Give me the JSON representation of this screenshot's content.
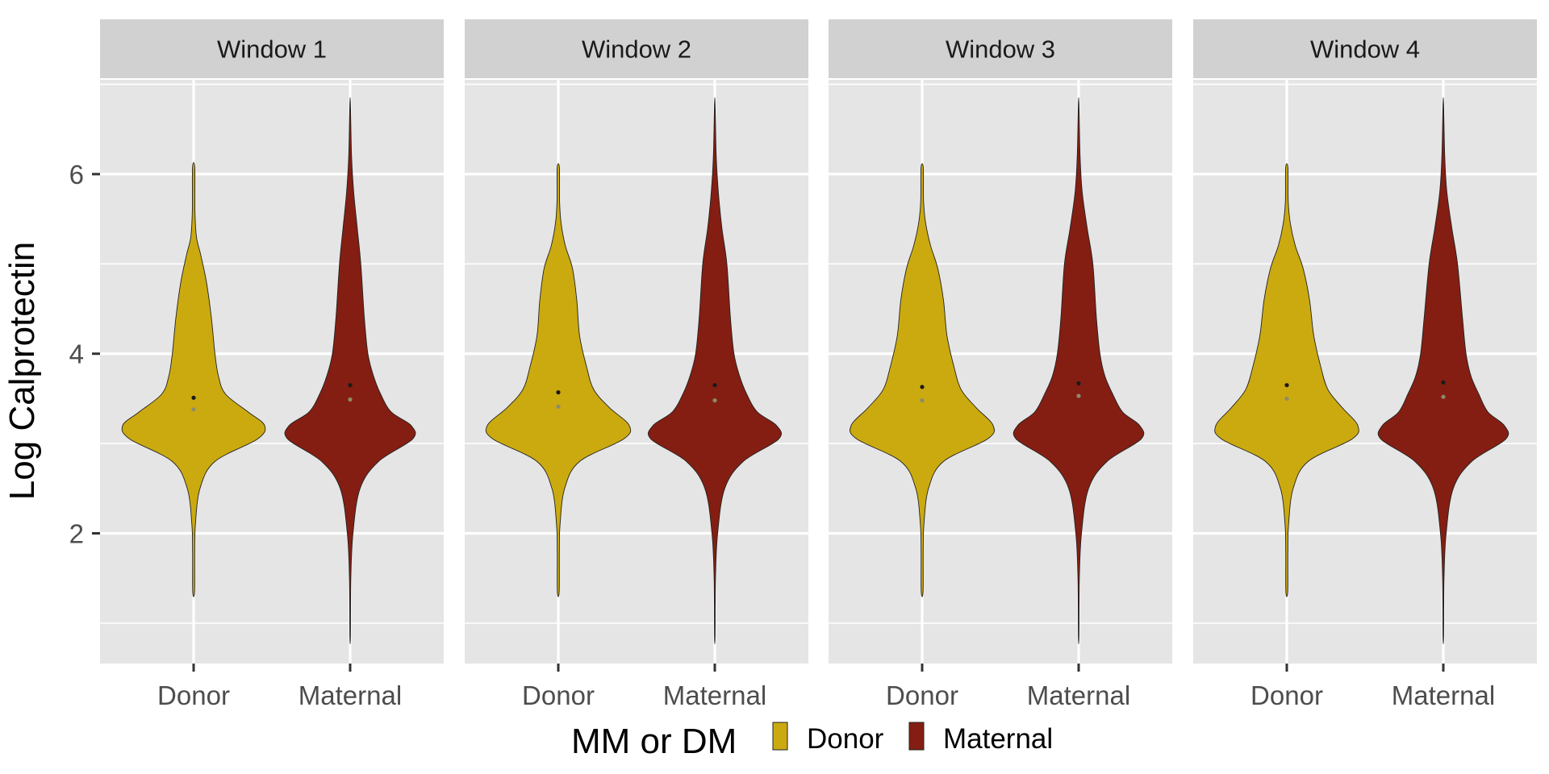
{
  "chart_data": {
    "type": "violin",
    "facets": [
      "Window 1",
      "Window 2",
      "Window 3",
      "Window 4"
    ],
    "categories": [
      "Donor",
      "Maternal"
    ],
    "ylabel": "Log Calprotectin",
    "xlabel": "",
    "ylim": [
      0.55,
      7.05
    ],
    "yticks": [
      2,
      4,
      6
    ],
    "grid": true,
    "legend": {
      "title": "MM or DM",
      "position": "bottom",
      "items": [
        {
          "label": "Donor",
          "color": "#CBAA10"
        },
        {
          "label": "Maternal",
          "color": "#841E12"
        }
      ]
    },
    "colors": {
      "Donor": "#CBAA10",
      "Maternal": "#841E12",
      "panel": "#E5E5E5",
      "strip": "#D1D1D1"
    },
    "violins": [
      {
        "facet": "Window 1",
        "group": "Donor",
        "min": 1.35,
        "max": 6.07,
        "mean": 3.51,
        "median": 3.38,
        "profile": [
          [
            1.35,
            0.013
          ],
          [
            1.8,
            0.015
          ],
          [
            2.1,
            0.025
          ],
          [
            2.5,
            0.09
          ],
          [
            2.8,
            0.3
          ],
          [
            3.05,
            0.9
          ],
          [
            3.2,
            1.0
          ],
          [
            3.35,
            0.77
          ],
          [
            3.55,
            0.45
          ],
          [
            3.75,
            0.35
          ],
          [
            4.0,
            0.3
          ],
          [
            4.4,
            0.25
          ],
          [
            4.8,
            0.18
          ],
          [
            5.1,
            0.1
          ],
          [
            5.3,
            0.04
          ],
          [
            5.6,
            0.018
          ],
          [
            6.07,
            0.016
          ]
        ]
      },
      {
        "facet": "Window 1",
        "group": "Maternal",
        "min": 0.85,
        "max": 6.78,
        "mean": 3.65,
        "median": 3.49,
        "profile": [
          [
            0.85,
            0.004
          ],
          [
            1.5,
            0.01
          ],
          [
            2.0,
            0.04
          ],
          [
            2.5,
            0.14
          ],
          [
            2.8,
            0.4
          ],
          [
            3.05,
            0.88
          ],
          [
            3.2,
            0.86
          ],
          [
            3.35,
            0.58
          ],
          [
            3.55,
            0.43
          ],
          [
            3.75,
            0.33
          ],
          [
            4.0,
            0.25
          ],
          [
            4.4,
            0.2
          ],
          [
            5.0,
            0.15
          ],
          [
            5.4,
            0.1
          ],
          [
            5.8,
            0.05
          ],
          [
            6.2,
            0.02
          ],
          [
            6.78,
            0.004
          ]
        ]
      },
      {
        "facet": "Window 2",
        "group": "Donor",
        "min": 1.35,
        "max": 6.07,
        "mean": 3.57,
        "median": 3.41,
        "profile": [
          [
            1.35,
            0.013
          ],
          [
            1.8,
            0.015
          ],
          [
            2.1,
            0.025
          ],
          [
            2.5,
            0.09
          ],
          [
            2.8,
            0.3
          ],
          [
            3.05,
            0.92
          ],
          [
            3.2,
            1.0
          ],
          [
            3.4,
            0.72
          ],
          [
            3.6,
            0.5
          ],
          [
            3.85,
            0.4
          ],
          [
            4.2,
            0.3
          ],
          [
            4.6,
            0.26
          ],
          [
            4.95,
            0.2
          ],
          [
            5.2,
            0.1
          ],
          [
            5.45,
            0.04
          ],
          [
            5.7,
            0.018
          ],
          [
            6.07,
            0.016
          ]
        ]
      },
      {
        "facet": "Window 2",
        "group": "Maternal",
        "min": 0.85,
        "max": 6.78,
        "mean": 3.65,
        "median": 3.48,
        "profile": [
          [
            0.85,
            0.004
          ],
          [
            1.5,
            0.01
          ],
          [
            2.0,
            0.04
          ],
          [
            2.5,
            0.14
          ],
          [
            2.8,
            0.4
          ],
          [
            3.05,
            0.9
          ],
          [
            3.2,
            0.87
          ],
          [
            3.35,
            0.6
          ],
          [
            3.55,
            0.45
          ],
          [
            3.75,
            0.35
          ],
          [
            4.0,
            0.27
          ],
          [
            4.4,
            0.22
          ],
          [
            5.0,
            0.17
          ],
          [
            5.4,
            0.1
          ],
          [
            5.8,
            0.05
          ],
          [
            6.2,
            0.02
          ],
          [
            6.78,
            0.004
          ]
        ]
      },
      {
        "facet": "Window 3",
        "group": "Donor",
        "min": 1.35,
        "max": 6.07,
        "mean": 3.63,
        "median": 3.48,
        "profile": [
          [
            1.35,
            0.013
          ],
          [
            1.8,
            0.015
          ],
          [
            2.1,
            0.025
          ],
          [
            2.5,
            0.09
          ],
          [
            2.8,
            0.3
          ],
          [
            3.05,
            0.92
          ],
          [
            3.2,
            1.0
          ],
          [
            3.4,
            0.76
          ],
          [
            3.6,
            0.55
          ],
          [
            3.85,
            0.45
          ],
          [
            4.2,
            0.35
          ],
          [
            4.6,
            0.3
          ],
          [
            4.95,
            0.22
          ],
          [
            5.2,
            0.12
          ],
          [
            5.45,
            0.05
          ],
          [
            5.7,
            0.02
          ],
          [
            6.07,
            0.016
          ]
        ]
      },
      {
        "facet": "Window 3",
        "group": "Maternal",
        "min": 0.85,
        "max": 6.78,
        "mean": 3.67,
        "median": 3.53,
        "profile": [
          [
            0.85,
            0.004
          ],
          [
            1.5,
            0.01
          ],
          [
            2.0,
            0.04
          ],
          [
            2.5,
            0.14
          ],
          [
            2.8,
            0.4
          ],
          [
            3.05,
            0.88
          ],
          [
            3.2,
            0.86
          ],
          [
            3.35,
            0.62
          ],
          [
            3.55,
            0.48
          ],
          [
            3.75,
            0.37
          ],
          [
            4.0,
            0.3
          ],
          [
            4.4,
            0.25
          ],
          [
            5.0,
            0.2
          ],
          [
            5.4,
            0.12
          ],
          [
            5.8,
            0.05
          ],
          [
            6.2,
            0.02
          ],
          [
            6.78,
            0.004
          ]
        ]
      },
      {
        "facet": "Window 4",
        "group": "Donor",
        "min": 1.35,
        "max": 6.07,
        "mean": 3.65,
        "median": 3.5,
        "profile": [
          [
            1.35,
            0.013
          ],
          [
            1.8,
            0.015
          ],
          [
            2.1,
            0.025
          ],
          [
            2.5,
            0.09
          ],
          [
            2.8,
            0.3
          ],
          [
            3.05,
            0.92
          ],
          [
            3.2,
            1.0
          ],
          [
            3.4,
            0.78
          ],
          [
            3.6,
            0.58
          ],
          [
            3.85,
            0.48
          ],
          [
            4.2,
            0.38
          ],
          [
            4.6,
            0.32
          ],
          [
            4.95,
            0.23
          ],
          [
            5.2,
            0.12
          ],
          [
            5.45,
            0.05
          ],
          [
            5.7,
            0.02
          ],
          [
            6.07,
            0.016
          ]
        ]
      },
      {
        "facet": "Window 4",
        "group": "Maternal",
        "min": 0.85,
        "max": 6.78,
        "mean": 3.68,
        "median": 3.52,
        "profile": [
          [
            0.85,
            0.004
          ],
          [
            1.5,
            0.01
          ],
          [
            2.0,
            0.04
          ],
          [
            2.5,
            0.14
          ],
          [
            2.8,
            0.4
          ],
          [
            3.05,
            0.88
          ],
          [
            3.2,
            0.86
          ],
          [
            3.35,
            0.63
          ],
          [
            3.55,
            0.5
          ],
          [
            3.75,
            0.39
          ],
          [
            4.0,
            0.32
          ],
          [
            4.4,
            0.27
          ],
          [
            5.0,
            0.2
          ],
          [
            5.4,
            0.12
          ],
          [
            5.8,
            0.05
          ],
          [
            6.2,
            0.02
          ],
          [
            6.78,
            0.004
          ]
        ]
      }
    ]
  }
}
